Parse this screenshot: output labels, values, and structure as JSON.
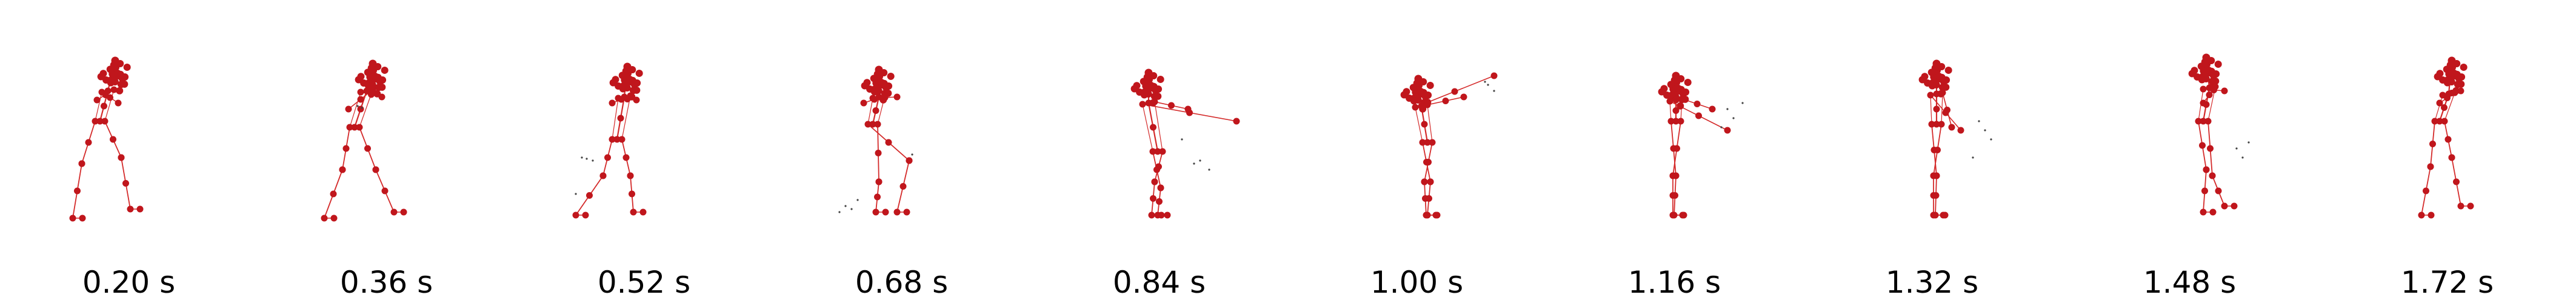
{
  "figure": {
    "frames": [
      {
        "time_label": "0.20 s"
      },
      {
        "time_label": "0.36 s"
      },
      {
        "time_label": "0.52 s"
      },
      {
        "time_label": "0.68 s"
      },
      {
        "time_label": "0.84 s"
      },
      {
        "time_label": "1.00 s"
      },
      {
        "time_label": "1.16 s"
      },
      {
        "time_label": "1.32 s"
      },
      {
        "time_label": "1.48 s"
      },
      {
        "time_label": "1.72 s"
      }
    ],
    "colors": {
      "joint": "#c0161c",
      "bone": "#d42a2a",
      "trace": "#444444",
      "caption": "#000000"
    }
  }
}
